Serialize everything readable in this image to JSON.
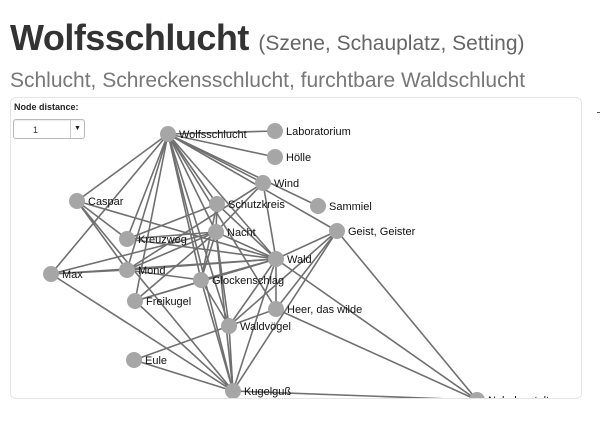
{
  "header": {
    "title": "Wolfsschlucht",
    "category": "(Szene, Schauplatz, Setting)",
    "subtitle": "Schlucht, Schreckensschlucht, furchtbare Waldschlucht"
  },
  "controls": {
    "node_distance_label": "Node distance:",
    "node_distance_value": "1"
  },
  "graph": {
    "nodes": [
      {
        "id": "wolfsschlucht",
        "label": "Wolfsschlucht"
      },
      {
        "id": "laboratorium",
        "label": "Laboratorium"
      },
      {
        "id": "hoelle",
        "label": "Hölle"
      },
      {
        "id": "wind",
        "label": "Wind"
      },
      {
        "id": "sammiel",
        "label": "Sammiel"
      },
      {
        "id": "caspar",
        "label": "Caspar"
      },
      {
        "id": "schutzkreis",
        "label": "Schutzkreis"
      },
      {
        "id": "kreuzweg",
        "label": "Kreuzweg"
      },
      {
        "id": "nacht",
        "label": "Nacht"
      },
      {
        "id": "geist",
        "label": "Geist, Geister"
      },
      {
        "id": "max",
        "label": "Max"
      },
      {
        "id": "mond",
        "label": "Mond"
      },
      {
        "id": "wald",
        "label": "Wald"
      },
      {
        "id": "glockenschlag",
        "label": "Glockenschlag"
      },
      {
        "id": "freikugel",
        "label": "Freikugel"
      },
      {
        "id": "heer",
        "label": "Heer, das wilde"
      },
      {
        "id": "waldvoegel",
        "label": "Waldvögel"
      },
      {
        "id": "eule",
        "label": "Eule"
      },
      {
        "id": "kugelguss",
        "label": "Kugelguß"
      },
      {
        "id": "nebelgestalt",
        "label": "Nebelgestalt"
      }
    ],
    "edges": [
      [
        "wolfsschlucht",
        "laboratorium"
      ],
      [
        "wolfsschlucht",
        "hoelle"
      ],
      [
        "wolfsschlucht",
        "wind"
      ],
      [
        "wolfsschlucht",
        "sammiel"
      ],
      [
        "wolfsschlucht",
        "caspar"
      ],
      [
        "wolfsschlucht",
        "schutzkreis"
      ],
      [
        "wolfsschlucht",
        "kreuzweg"
      ],
      [
        "wolfsschlucht",
        "nacht"
      ],
      [
        "wolfsschlucht",
        "max"
      ],
      [
        "wolfsschlucht",
        "mond"
      ],
      [
        "wolfsschlucht",
        "wald"
      ],
      [
        "wolfsschlucht",
        "glockenschlag"
      ],
      [
        "wolfsschlucht",
        "freikugel"
      ],
      [
        "wolfsschlucht",
        "heer"
      ],
      [
        "wolfsschlucht",
        "waldvoegel"
      ],
      [
        "wolfsschlucht",
        "kugelguss"
      ],
      [
        "wolfsschlucht",
        "geist"
      ],
      [
        "caspar",
        "kreuzweg"
      ],
      [
        "caspar",
        "mond"
      ],
      [
        "caspar",
        "wald"
      ],
      [
        "caspar",
        "kugelguss"
      ],
      [
        "kreuzweg",
        "schutzkreis"
      ],
      [
        "kreuzweg",
        "nacht"
      ],
      [
        "kreuzweg",
        "wald"
      ],
      [
        "schutzkreis",
        "nacht"
      ],
      [
        "schutzkreis",
        "wald"
      ],
      [
        "schutzkreis",
        "glockenschlag"
      ],
      [
        "wind",
        "nacht"
      ],
      [
        "wind",
        "wald"
      ],
      [
        "wind",
        "mond"
      ],
      [
        "nacht",
        "wald"
      ],
      [
        "nacht",
        "waldvoegel"
      ],
      [
        "nacht",
        "kugelguss"
      ],
      [
        "nacht",
        "max"
      ],
      [
        "nacht",
        "freikugel"
      ],
      [
        "nacht",
        "glockenschlag"
      ],
      [
        "nacht",
        "mond"
      ],
      [
        "geist",
        "wald"
      ],
      [
        "geist",
        "heer"
      ],
      [
        "geist",
        "waldvoegel"
      ],
      [
        "geist",
        "nebelgestalt"
      ],
      [
        "geist",
        "kugelguss"
      ],
      [
        "max",
        "mond"
      ],
      [
        "max",
        "wald"
      ],
      [
        "max",
        "kugelguss"
      ],
      [
        "mond",
        "wald"
      ],
      [
        "mond",
        "glockenschlag"
      ],
      [
        "wald",
        "glockenschlag"
      ],
      [
        "wald",
        "waldvoegel"
      ],
      [
        "wald",
        "nebelgestalt"
      ],
      [
        "wald",
        "kugelguss"
      ],
      [
        "wald",
        "freikugel"
      ],
      [
        "wald",
        "heer"
      ],
      [
        "glockenschlag",
        "waldvoegel"
      ],
      [
        "glockenschlag",
        "kugelguss"
      ],
      [
        "freikugel",
        "wald"
      ],
      [
        "freikugel",
        "kugelguss"
      ],
      [
        "heer",
        "waldvoegel"
      ],
      [
        "heer",
        "nebelgestalt"
      ],
      [
        "waldvoegel",
        "eule"
      ],
      [
        "waldvoegel",
        "kugelguss"
      ],
      [
        "eule",
        "kugelguss"
      ],
      [
        "kugelguss",
        "nebelgestalt"
      ]
    ]
  }
}
